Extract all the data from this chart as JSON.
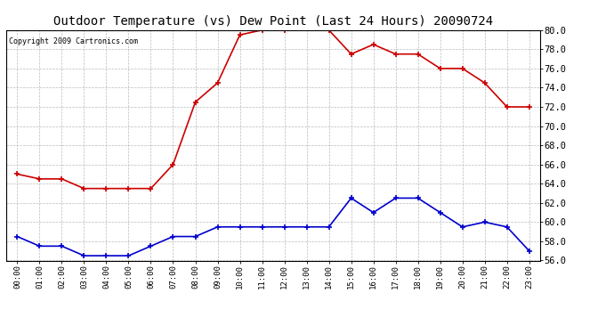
{
  "title": "Outdoor Temperature (vs) Dew Point (Last 24 Hours) 20090724",
  "copyright": "Copyright 2009 Cartronics.com",
  "hours": [
    "00:00",
    "01:00",
    "02:00",
    "03:00",
    "04:00",
    "05:00",
    "06:00",
    "07:00",
    "08:00",
    "09:00",
    "10:00",
    "11:00",
    "12:00",
    "13:00",
    "14:00",
    "15:00",
    "16:00",
    "17:00",
    "18:00",
    "19:00",
    "20:00",
    "21:00",
    "22:00",
    "23:00"
  ],
  "temp": [
    65.0,
    64.5,
    64.5,
    63.5,
    63.5,
    63.5,
    63.5,
    66.0,
    72.5,
    74.5,
    79.5,
    80.0,
    80.0,
    80.5,
    80.0,
    77.5,
    78.5,
    77.5,
    77.5,
    76.0,
    76.0,
    74.5,
    72.0,
    72.0
  ],
  "dew": [
    58.5,
    57.5,
    57.5,
    56.5,
    56.5,
    56.5,
    57.5,
    58.5,
    58.5,
    59.5,
    59.5,
    59.5,
    59.5,
    59.5,
    59.5,
    62.5,
    61.0,
    62.5,
    62.5,
    61.0,
    59.5,
    60.0,
    59.5,
    57.0
  ],
  "temp_color": "#cc0000",
  "dew_color": "#0000cc",
  "bg_color": "#ffffff",
  "grid_color": "#bbbbbb",
  "ylim_min": 56.0,
  "ylim_max": 80.0,
  "ytick_step": 2.0,
  "title_fontsize": 10,
  "copyright_fontsize": 6,
  "marker": "+",
  "markersize": 5,
  "linewidth": 1.2
}
